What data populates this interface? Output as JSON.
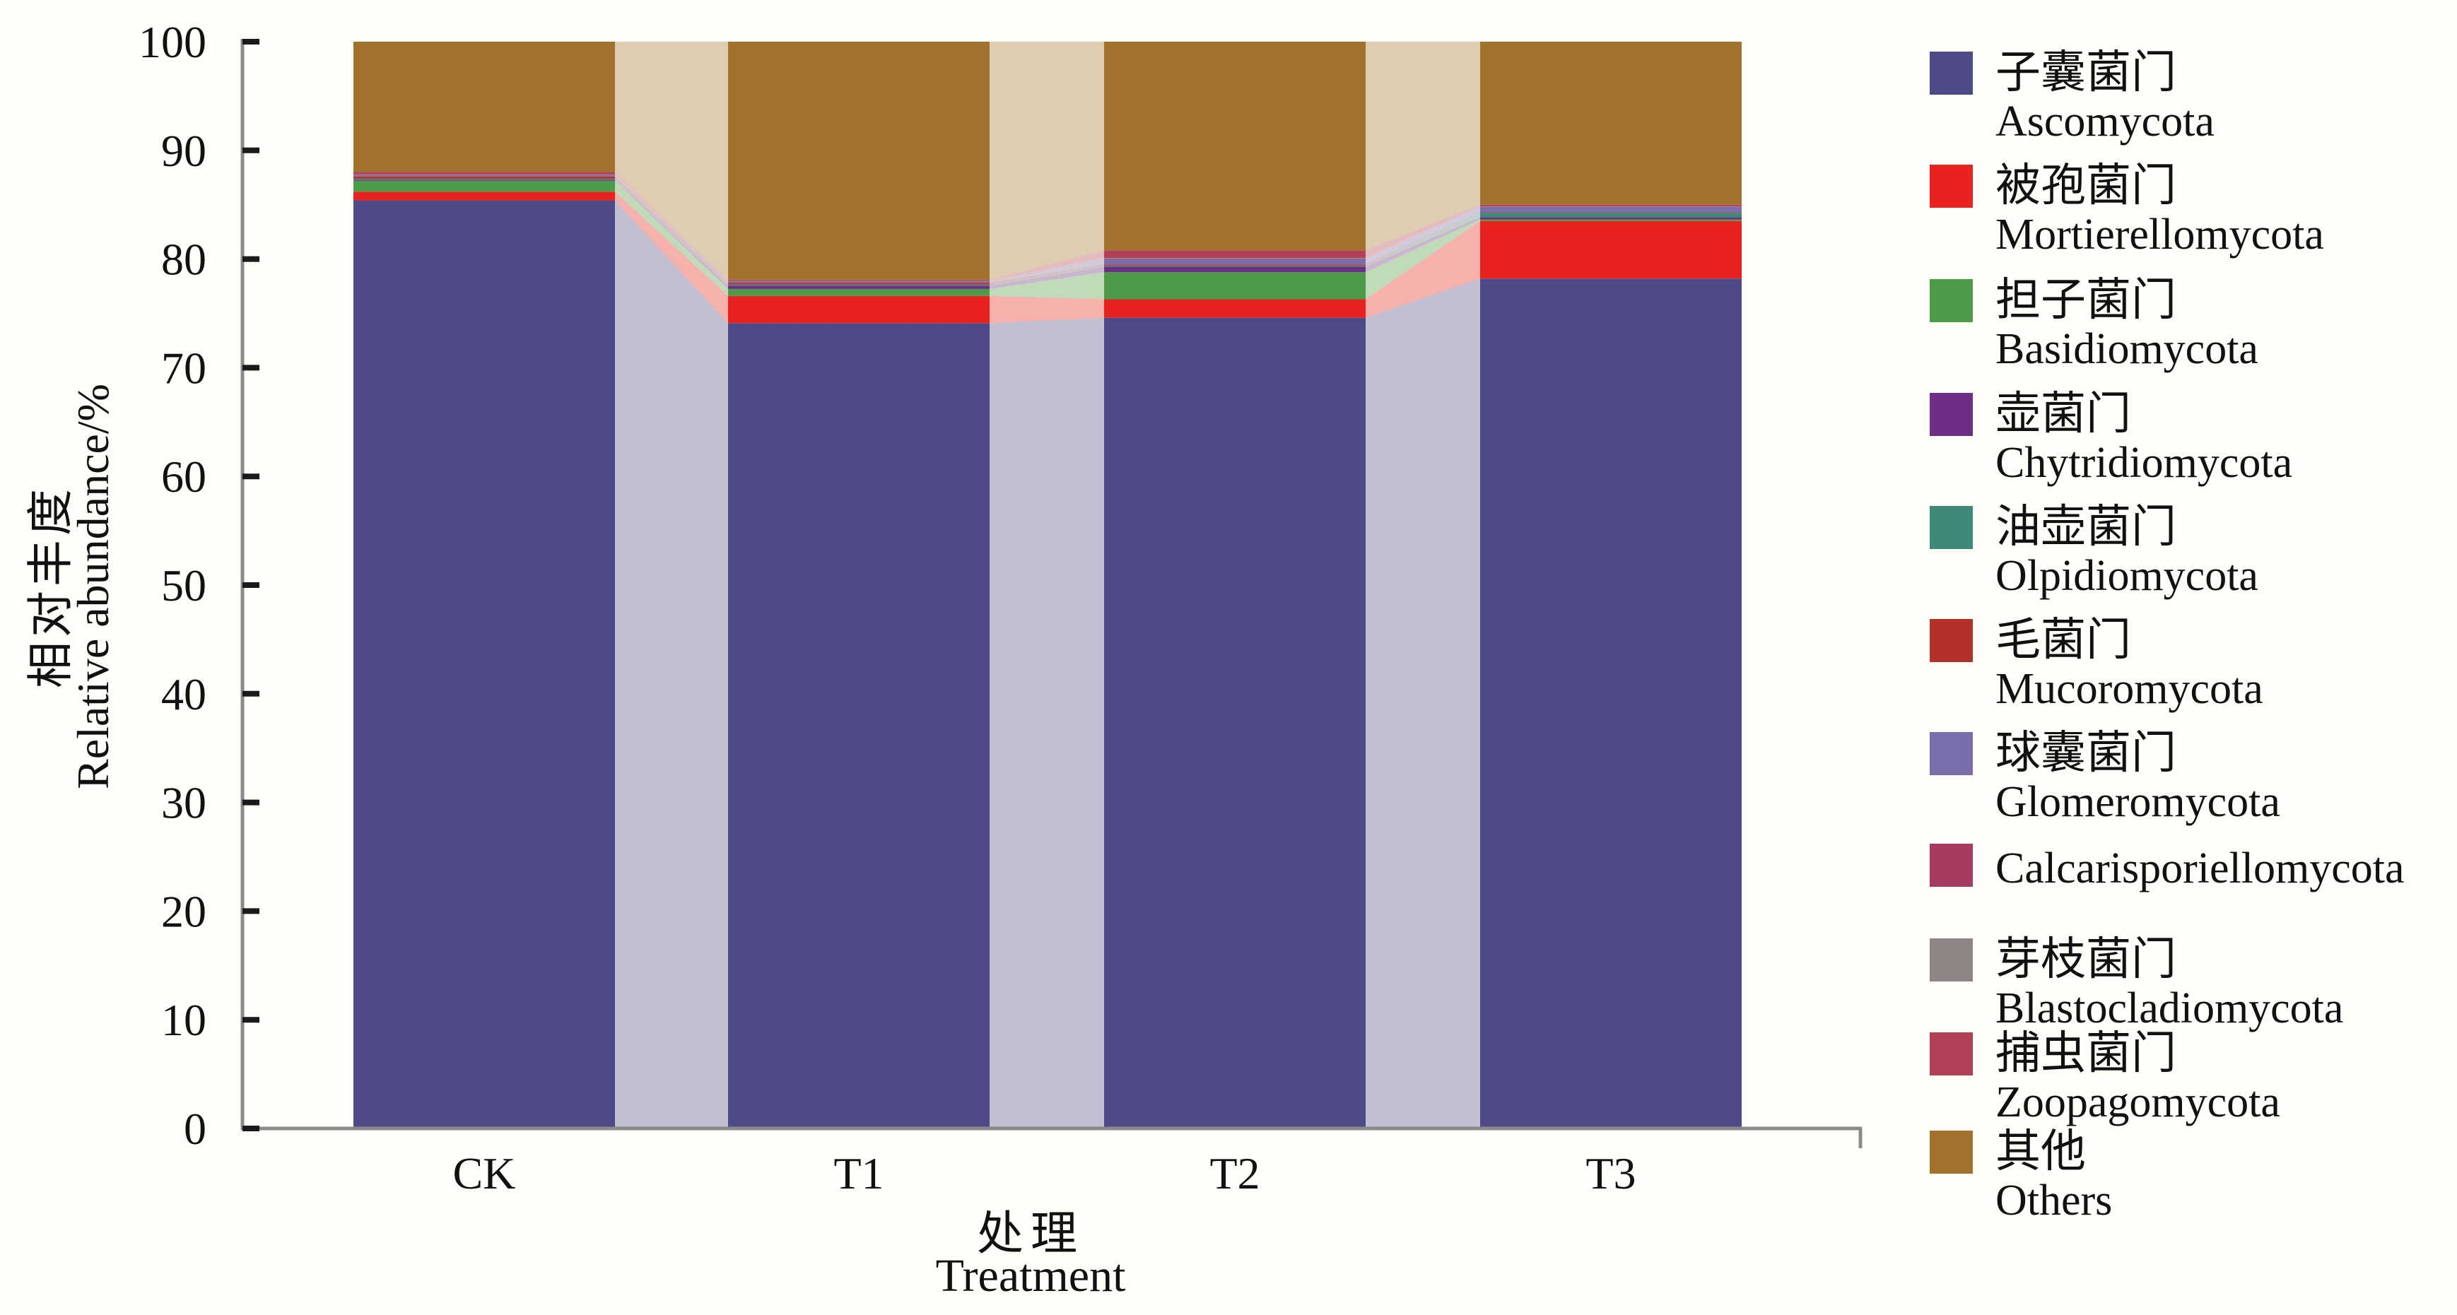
{
  "y_axis": {
    "title_zh": "相对丰度",
    "title_en": "Relative abundance/%",
    "ticks": [
      0,
      10,
      20,
      30,
      40,
      50,
      60,
      70,
      80,
      90,
      100
    ]
  },
  "x_axis": {
    "title_zh": "处理",
    "title_en": "Treatment",
    "categories": [
      "CK",
      "T1",
      "T2",
      "T3"
    ]
  },
  "chart_data": {
    "type": "bar",
    "subtype": "stacked-bars-with-connecting-ribbons",
    "categories": [
      "CK",
      "T1",
      "T2",
      "T3"
    ],
    "stack_order": "bottom-to-top",
    "ylabel_zh": "相对丰度",
    "ylabel_en": "Relative abundance/%",
    "xlabel_zh": "处理",
    "xlabel_en": "Treatment",
    "ylim": [
      0,
      100
    ],
    "grid": false,
    "legend_position": "right",
    "ribbon_opacity": 0.35,
    "series": [
      {
        "name_zh": "子囊菌门",
        "name_en": "Ascomycota",
        "color": "#4e4a87",
        "values": [
          85.4,
          74.1,
          74.6,
          78.2
        ]
      },
      {
        "name_zh": "被孢菌门",
        "name_en": "Mortierellomycota",
        "color": "#e8231f",
        "values": [
          0.8,
          2.5,
          1.7,
          5.3
        ]
      },
      {
        "name_zh": "担子菌门",
        "name_en": "Basidiomycota",
        "color": "#4d9a49",
        "values": [
          1.0,
          0.65,
          2.5,
          0.15
        ]
      },
      {
        "name_zh": "壶菌门",
        "name_en": "Chytridiomycota",
        "color": "#6e2d86",
        "values": [
          0.1,
          0.3,
          0.5,
          0.2
        ]
      },
      {
        "name_zh": "油壶菌门",
        "name_en": "Olpidiomycota",
        "color": "#3d8a7a",
        "values": [
          0.1,
          0.1,
          0.1,
          0.4
        ]
      },
      {
        "name_zh": "毛菌门",
        "name_en": "Mucoromycota",
        "color": "#b23229",
        "values": [
          0.2,
          0.15,
          0.1,
          0.05
        ]
      },
      {
        "name_zh": "球囊菌门",
        "name_en": "Glomeromycota",
        "color": "#7a6dab",
        "values": [
          0.1,
          0.1,
          0.5,
          0.5
        ]
      },
      {
        "name_zh": "",
        "name_en": "Calcarisporiellomycota",
        "color": "#a83a62",
        "values": [
          0.05,
          0.05,
          0.05,
          0.02
        ]
      },
      {
        "name_zh": "芽枝菌门",
        "name_en": "Blastocladiomycota",
        "color": "#8e8683",
        "values": [
          0.05,
          0.05,
          0.05,
          0.03
        ]
      },
      {
        "name_zh": "捕虫菌门",
        "name_en": "Zoopagomycota",
        "color": "#b34057",
        "values": [
          0.2,
          0.1,
          0.7,
          0.15
        ]
      },
      {
        "name_zh": "其他",
        "name_en": "Others",
        "color": "#a1722e",
        "values": [
          12.0,
          21.9,
          19.2,
          15.0
        ]
      }
    ]
  },
  "colors": {
    "axis_line": "#8a8a8a",
    "tick_mark": "#1a1a1a",
    "text": "#111111",
    "background": "#fffdf8"
  }
}
